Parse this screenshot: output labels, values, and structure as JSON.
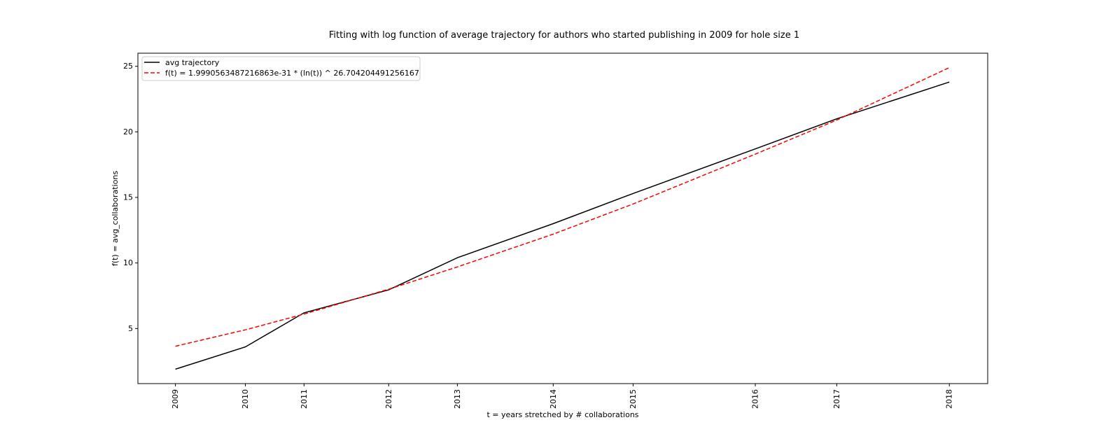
{
  "chart_data": {
    "type": "line",
    "title": "Fitting with log function of average trajectory for authors who started publishing in 2009 for hole size 1",
    "xlabel": "t = years stretched by # collaborations",
    "ylabel": "f(t) = avg_collaborations",
    "x_ticks": [
      {
        "label": "2009",
        "value": 1.0
      },
      {
        "label": "2010",
        "value": 1.875
      },
      {
        "label": "2011",
        "value": 2.61
      },
      {
        "label": "2012",
        "value": 3.67
      },
      {
        "label": "2013",
        "value": 4.53
      },
      {
        "label": "2014",
        "value": 5.73
      },
      {
        "label": "2015",
        "value": 6.73
      },
      {
        "label": "2016",
        "value": 8.26
      },
      {
        "label": "2017",
        "value": 9.28
      },
      {
        "label": "2018",
        "value": 10.69
      }
    ],
    "xlim": [
      0.53,
      11.17
    ],
    "y_ticks": [
      5,
      10,
      15,
      20,
      25
    ],
    "ylim": [
      0.8,
      26.0
    ],
    "grid": false,
    "legend_position": "top-left",
    "series": [
      {
        "name": "avg trajectory",
        "color": "#000000",
        "linestyle": "solid",
        "x": [
          1.0,
          1.875,
          2.61,
          3.67,
          4.53,
          5.73,
          6.73,
          8.26,
          9.28,
          10.69
        ],
        "y": [
          1.9,
          3.6,
          6.2,
          7.95,
          10.4,
          13.0,
          15.3,
          18.7,
          21.0,
          23.8
        ]
      },
      {
        "name": "f(t) = 1.9990563487216863e-31 * (ln(t)) ^ 26.704204491256167",
        "color": "#ff0000",
        "linestyle": "dashed",
        "x": [
          1.0,
          1.875,
          2.61,
          3.67,
          4.53,
          5.73,
          6.73,
          8.26,
          9.28,
          10.69
        ],
        "y": [
          3.65,
          4.9,
          6.1,
          8.0,
          9.7,
          12.2,
          14.5,
          18.3,
          20.9,
          24.9
        ]
      }
    ]
  }
}
